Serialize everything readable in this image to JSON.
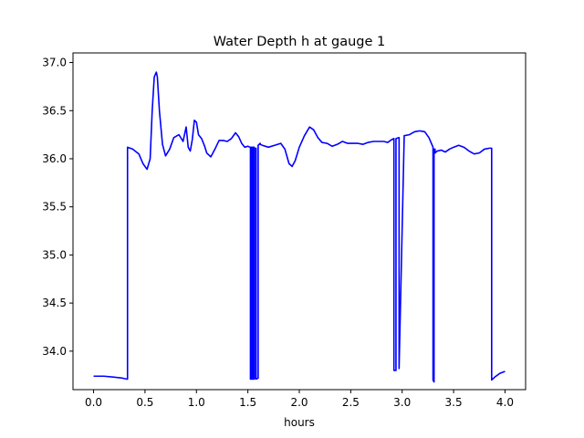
{
  "chart_data": {
    "type": "line",
    "title": "Water Depth h at gauge 1",
    "xlabel": "hours",
    "ylabel": "",
    "xlim": [
      -0.2,
      4.2
    ],
    "ylim": [
      33.6,
      37.1
    ],
    "xticks": [
      0.0,
      0.5,
      1.0,
      1.5,
      2.0,
      2.5,
      3.0,
      3.5,
      4.0
    ],
    "xtick_labels": [
      "0.0",
      "0.5",
      "1.0",
      "1.5",
      "2.0",
      "2.5",
      "3.0",
      "3.5",
      "4.0"
    ],
    "yticks": [
      34.0,
      34.5,
      35.0,
      35.5,
      36.0,
      36.5,
      37.0
    ],
    "ytick_labels": [
      "34.0",
      "34.5",
      "35.0",
      "35.5",
      "36.0",
      "36.5",
      "37.0"
    ],
    "grid": false,
    "series": [
      {
        "color": "#0000ff",
        "x": [
          0.0,
          0.1,
          0.2,
          0.28,
          0.32,
          0.33,
          0.33,
          0.38,
          0.44,
          0.48,
          0.52,
          0.55,
          0.57,
          0.59,
          0.61,
          0.62,
          0.64,
          0.67,
          0.7,
          0.74,
          0.78,
          0.83,
          0.87,
          0.9,
          0.92,
          0.94,
          0.96,
          0.98,
          1.0,
          1.02,
          1.05,
          1.08,
          1.1,
          1.14,
          1.18,
          1.22,
          1.26,
          1.3,
          1.34,
          1.38,
          1.41,
          1.44,
          1.47,
          1.5,
          1.52,
          1.525,
          1.525,
          1.535,
          1.535,
          1.54,
          1.54,
          1.55,
          1.55,
          1.56,
          1.56,
          1.565,
          1.565,
          1.58,
          1.58,
          1.6,
          1.6,
          1.62,
          1.62,
          1.64,
          1.7,
          1.76,
          1.82,
          1.86,
          1.9,
          1.93,
          1.96,
          2.0,
          2.05,
          2.1,
          2.14,
          2.18,
          2.22,
          2.27,
          2.32,
          2.37,
          2.42,
          2.47,
          2.52,
          2.57,
          2.62,
          2.67,
          2.72,
          2.77,
          2.82,
          2.86,
          2.9,
          2.92,
          2.92,
          2.94,
          2.94,
          2.97,
          2.97,
          3.02,
          3.07,
          3.12,
          3.17,
          3.22,
          3.26,
          3.3,
          3.3,
          3.31,
          3.31,
          3.32,
          3.32,
          3.34,
          3.38,
          3.42,
          3.46,
          3.5,
          3.55,
          3.6,
          3.65,
          3.7,
          3.75,
          3.8,
          3.85,
          3.87,
          3.87,
          3.9,
          3.95,
          4.0
        ],
        "y": [
          33.74,
          33.74,
          33.73,
          33.72,
          33.71,
          33.71,
          36.12,
          36.1,
          36.05,
          35.95,
          35.89,
          36.0,
          36.5,
          36.85,
          36.9,
          36.85,
          36.5,
          36.15,
          36.03,
          36.1,
          36.22,
          36.25,
          36.18,
          36.33,
          36.12,
          36.08,
          36.2,
          36.4,
          36.38,
          36.25,
          36.21,
          36.13,
          36.06,
          36.02,
          36.1,
          36.19,
          36.19,
          36.18,
          36.21,
          36.27,
          36.23,
          36.16,
          36.12,
          36.13,
          36.12,
          36.12,
          33.71,
          33.71,
          36.12,
          36.12,
          33.71,
          33.71,
          36.12,
          36.12,
          33.71,
          33.71,
          36.11,
          36.11,
          33.71,
          33.72,
          36.14,
          36.16,
          36.15,
          36.14,
          36.12,
          36.14,
          36.16,
          36.1,
          35.95,
          35.92,
          35.98,
          36.12,
          36.24,
          36.33,
          36.3,
          36.22,
          36.17,
          36.16,
          36.13,
          36.15,
          36.18,
          36.16,
          36.16,
          36.16,
          36.15,
          36.17,
          36.18,
          36.18,
          36.18,
          36.17,
          36.2,
          36.21,
          33.8,
          33.8,
          36.21,
          36.22,
          33.82,
          36.24,
          36.25,
          36.28,
          36.29,
          36.28,
          36.22,
          36.12,
          33.7,
          33.68,
          36.1,
          36.1,
          36.06,
          36.08,
          36.09,
          36.07,
          36.1,
          36.12,
          36.14,
          36.12,
          36.08,
          36.05,
          36.06,
          36.1,
          36.11,
          36.11,
          33.7,
          33.73,
          33.77,
          33.79
        ]
      }
    ]
  }
}
